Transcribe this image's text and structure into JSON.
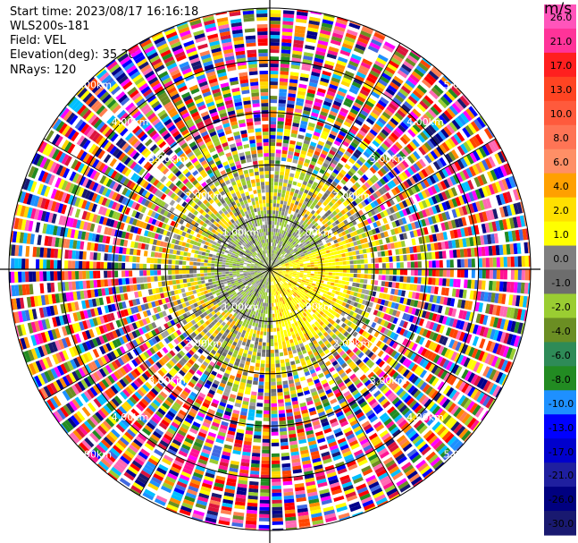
{
  "header": {
    "start_time": "Start time: 2023/08/17 16:16:18",
    "instrument": "WLS200s-181",
    "field": "Field: VEL",
    "elevation": "Elevation(deg): 35.30",
    "nrays": "NRays: 120"
  },
  "colorbar": {
    "title": "m/s",
    "ticks": [
      "26.0",
      "21.0",
      "17.0",
      "13.0",
      "10.0",
      "8.0",
      "6.0",
      "4.0",
      "2.0",
      "1.0",
      "0.0",
      "-1.0",
      "-2.0",
      "-4.0",
      "-6.0",
      "-8.0",
      "-10.0",
      "-13.0",
      "-17.0",
      "-21.0",
      "-26.0",
      "-30.0"
    ],
    "colors": [
      "#ff55bb",
      "#ff3399",
      "#ff1f1f",
      "#ff4422",
      "#ff5a3c",
      "#ff7455",
      "#ff8f66",
      "#ffa000",
      "#ffe000",
      "#ffff00",
      "#7f7f7f",
      "#6d6d6d",
      "#9acd32",
      "#6b8e23",
      "#2e8b57",
      "#228b22",
      "#1e90ff",
      "#0000ff",
      "#0000cd",
      "#1f1f9f",
      "#000080",
      "#191970"
    ]
  },
  "chart_data": {
    "type": "ppi",
    "field": "VEL",
    "units": "m/s",
    "nrays": 120,
    "range_rings_km": [
      {
        "label": "1.00km",
        "r": 1.0
      },
      {
        "label": "2.00km",
        "r": 2.0
      },
      {
        "label": "3.00km",
        "r": 3.0
      },
      {
        "label": "4.00km",
        "r": 4.0
      },
      {
        "label": "5.00km",
        "r": 5.0
      }
    ],
    "inner_echo_radius_km": 2.0,
    "max_range_km": 5.0
  }
}
